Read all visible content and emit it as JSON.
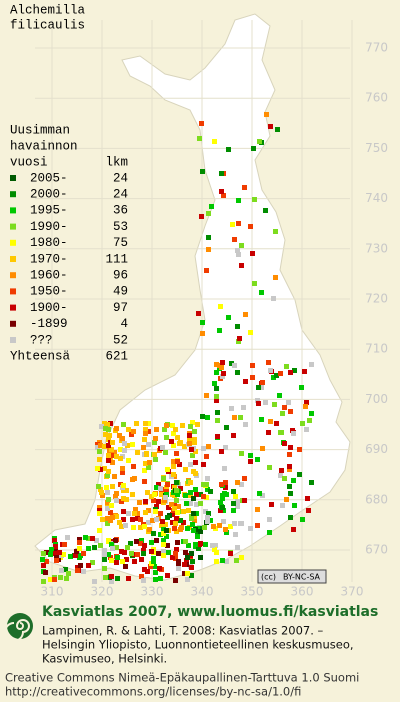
{
  "header": {
    "title_lines": [
      "Alchemilla",
      "filicaulis"
    ]
  },
  "legend": {
    "heading_lines": [
      "Uusimman",
      "havainnon",
      "vuosi"
    ],
    "count_heading": "lkm",
    "rows": [
      {
        "label": "2005-",
        "count": 24,
        "color": "#005a00"
      },
      {
        "label": "2000-",
        "count": 24,
        "color": "#008c00"
      },
      {
        "label": "1995-",
        "count": 36,
        "color": "#00c800"
      },
      {
        "label": "1990-",
        "count": 53,
        "color": "#7ddc1e"
      },
      {
        "label": "1980-",
        "count": 75,
        "color": "#ffff00"
      },
      {
        "label": "1970-",
        "count": 111,
        "color": "#ffc800"
      },
      {
        "label": "1960-",
        "count": 96,
        "color": "#ff8c00"
      },
      {
        "label": "1950-",
        "count": 49,
        "color": "#f03c00"
      },
      {
        "label": "1900-",
        "count": 97,
        "color": "#c80000"
      },
      {
        "label": "-1899",
        "count": 4,
        "color": "#780000"
      },
      {
        "label": "???",
        "count": 52,
        "color": "#c8c8c8"
      }
    ],
    "total_label": "Yhteensä",
    "total": 621
  },
  "grid": {
    "northing": [
      770,
      760,
      750,
      740,
      730,
      720,
      710,
      700,
      690,
      680,
      670
    ],
    "easting": [
      310,
      320,
      330,
      340,
      350,
      360,
      370
    ]
  },
  "badge": {
    "cc": "(cc)",
    "text": "BY-NC-SA"
  },
  "footer": {
    "title": "Kasviatlas 2007, www.luomus.fi/kasviatlas",
    "citation_lines": [
      "Lampinen, R. & Lahti, T. 2008: Kasviatlas 2007. –",
      "Helsingin Yliopisto, Luonnontieteellinen keskusmuseo,",
      "Kasvimuseo, Helsinki."
    ],
    "license_lines": [
      "Creative Commons Nimeä-Epäkaupallinen-Tarttuva 1.0 Suomi",
      "http://creativecommons.org/licenses/by-nc-sa/1.0/fi"
    ]
  }
}
